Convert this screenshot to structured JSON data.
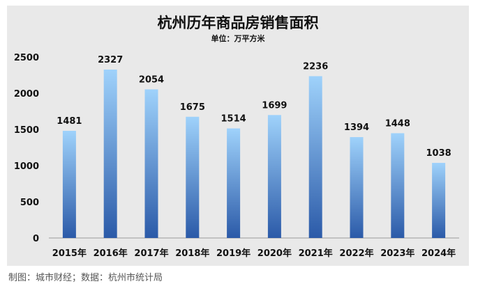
{
  "chart_data": {
    "type": "bar",
    "title": "杭州历年商品房销售面积",
    "subtitle": "单位：万平方米",
    "categories": [
      "2015年",
      "2016年",
      "2017年",
      "2018年",
      "2019年",
      "2020年",
      "2021年",
      "2022年",
      "2023年",
      "2024年"
    ],
    "values": [
      1481,
      2327,
      2054,
      1675,
      1514,
      1699,
      2236,
      1394,
      1448,
      1038
    ],
    "ylim": [
      0,
      2500
    ],
    "yticks": [
      0,
      500,
      1000,
      1500,
      2000,
      2500
    ],
    "grid": false,
    "legend": "none",
    "xlabel": "",
    "ylabel": "",
    "colors": {
      "bar_top": "#9fd2fb",
      "bar_bottom": "#2b5aa8",
      "panel_bg": "#e9e9e9",
      "text": "#111111"
    }
  },
  "footer": {
    "source": "制图：城市财经；数据：杭州市统计局"
  }
}
